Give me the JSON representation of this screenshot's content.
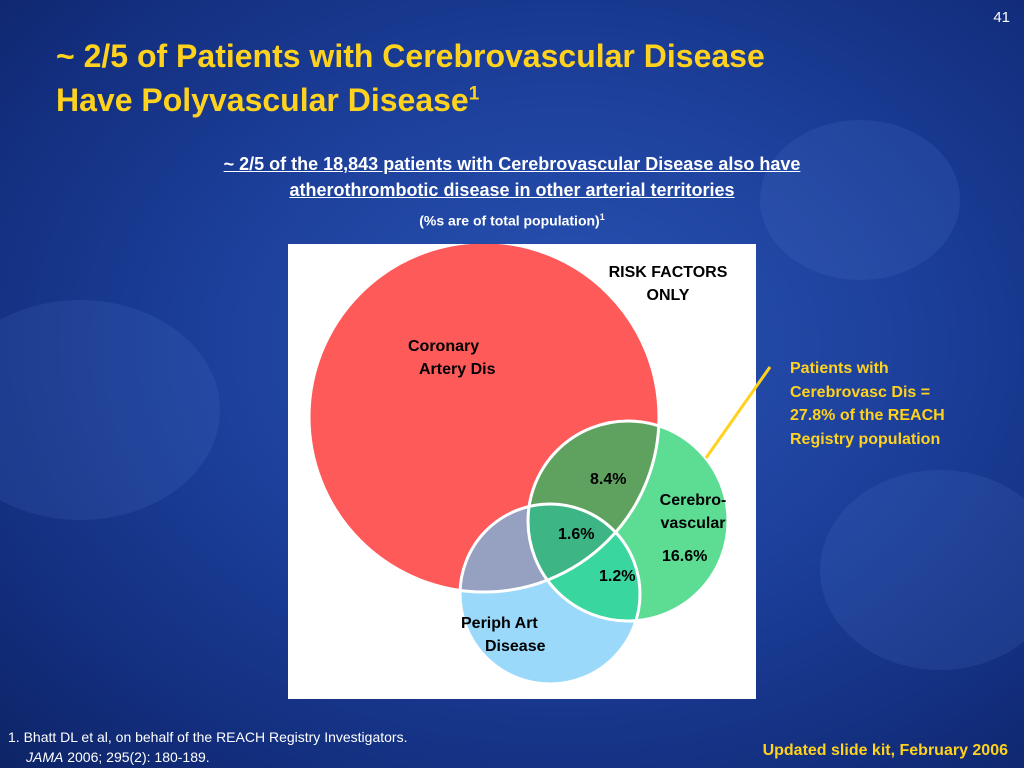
{
  "slide_number": "41",
  "title": {
    "line1": "~ 2/5 of Patients with Cerebrovascular Disease",
    "line2": "Have Polyvascular Disease",
    "sup": "1"
  },
  "subtitle": {
    "line1": "~ 2/5 of the 18,843 patients with Cerebrovascular Disease also have",
    "line2": "atherothrombotic disease in other arterial territories"
  },
  "note": {
    "text": "(%s are of total population)",
    "sup": "1"
  },
  "diagram": {
    "risk_factors": {
      "line1": "RISK FACTORS",
      "line2": "ONLY"
    },
    "coronary": {
      "line1": "Coronary",
      "line2": "Artery Dis"
    },
    "cerebrovascular": {
      "line1": "Cerebro-",
      "line2": "vascular",
      "value": "16.6%"
    },
    "periph": {
      "line1": "Periph Art",
      "line2": "Disease"
    },
    "overlap_coronary_cerebro": "8.4%",
    "overlap_all": "1.6%",
    "overlap_cerebro_periph": "1.2%",
    "colors": {
      "coronary": "#ff5a5a",
      "cerebrovascular": "#5ddc94",
      "periph": "#9bd9fa",
      "coronary_cerebro": "#5fa25f",
      "coronary_periph": "#96a0c0",
      "cerebro_periph": "#3ad6a0",
      "all_three": "#3db585"
    }
  },
  "callout": {
    "line1": "Patients with",
    "line2": "Cerebrovasc Dis =",
    "line3": "27.8% of the REACH",
    "line4": "Registry population"
  },
  "reference": {
    "line1": "1. Bhatt DL et al, on behalf of the REACH Registry Investigators.",
    "journal": "JAMA",
    "citation": " 2006; 295(2): 180-189."
  },
  "footer": "Updated slide kit, February 2006"
}
